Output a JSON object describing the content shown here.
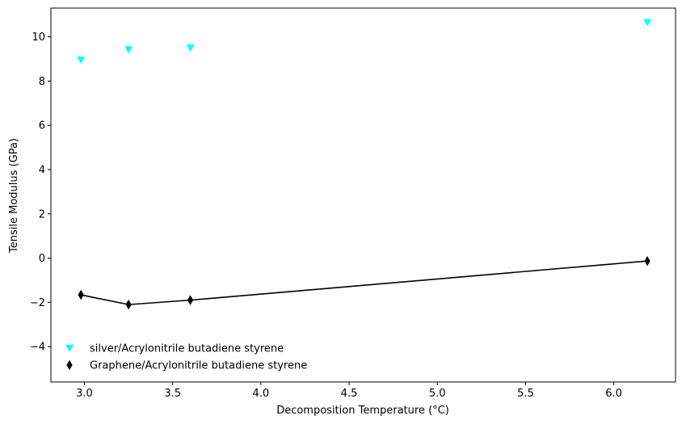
{
  "chart_data": {
    "type": "scatter",
    "title": "",
    "xlabel": "Decomposition Temperature (°C)",
    "ylabel": "Tensile Modulus (GPa)",
    "xlim": [
      2.81,
      6.35
    ],
    "ylim": [
      -5.6,
      11.3
    ],
    "grid": false,
    "legend_position": "lower-left",
    "x_ticks": [
      3.0,
      3.5,
      4.0,
      4.5,
      5.0,
      5.5,
      6.0
    ],
    "x_tick_labels": [
      "3.0",
      "3.5",
      "4.0",
      "4.5",
      "5.0",
      "5.5",
      "6.0"
    ],
    "y_ticks": [
      -4,
      -2,
      0,
      2,
      4,
      6,
      8,
      10
    ],
    "y_tick_labels": [
      "−4",
      "−2",
      "0",
      "2",
      "4",
      "6",
      "8",
      "10"
    ],
    "series": [
      {
        "name": "silver/Acrylonitrile butadiene styrene",
        "color": "#00ffff",
        "marker": "triangle-down",
        "line": false,
        "x": [
          2.98,
          3.25,
          3.6,
          6.19
        ],
        "y": [
          8.95,
          9.42,
          9.5,
          10.65
        ]
      },
      {
        "name": "Graphene/Acrylonitrile butadiene styrene",
        "color": "#000000",
        "marker": "thin-diamond",
        "line": true,
        "x": [
          2.98,
          3.25,
          3.6,
          6.19
        ],
        "y": [
          -1.66,
          -2.1,
          -1.9,
          -0.13
        ]
      }
    ]
  }
}
